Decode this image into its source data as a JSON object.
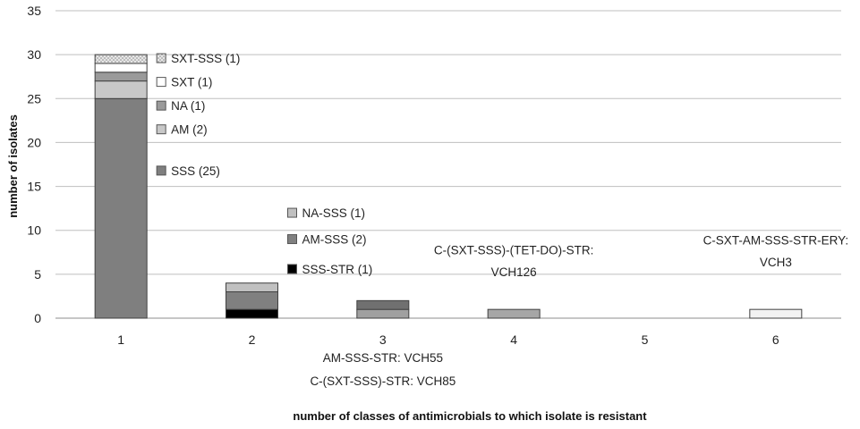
{
  "chart_data": {
    "type": "bar",
    "stacked": true,
    "title": "",
    "xlabel": "number of classes of antimicrobials  to which isolate is resistant",
    "ylabel": "number of isolates",
    "ylim": [
      0,
      35
    ],
    "ytick_step": 5,
    "grid": true,
    "categories": [
      "1",
      "2",
      "3",
      "4",
      "5",
      "6"
    ],
    "bars": [
      {
        "category": "1",
        "segments": [
          {
            "label": "SSS (25)",
            "value": 25,
            "fill": "#7f7f7f"
          },
          {
            "label": "AM (2)",
            "value": 2,
            "fill": "#c8c8c8"
          },
          {
            "label": "NA (1)",
            "value": 1,
            "fill": "#9a9a9a"
          },
          {
            "label": "SXT (1)",
            "value": 1,
            "fill": "#ffffff"
          },
          {
            "label": "SXT-SSS (1)",
            "value": 1,
            "fill": "#d9d9d9",
            "pattern": "dotted"
          }
        ]
      },
      {
        "category": "2",
        "segments": [
          {
            "label": "SSS-STR (1)",
            "value": 1,
            "fill": "#000000"
          },
          {
            "label": "AM-SSS (2)",
            "value": 2,
            "fill": "#808080"
          },
          {
            "label": "NA-SSS (1)",
            "value": 1,
            "fill": "#c0c0c0"
          }
        ]
      },
      {
        "category": "3",
        "segments": [
          {
            "label": "AM-SSS-STR:  VCH55",
            "value": 1,
            "fill": "#a0a0a0"
          },
          {
            "label": "C-(SXT-SSS)-STR:  VCH85",
            "value": 1,
            "fill": "#707070"
          }
        ]
      },
      {
        "category": "4",
        "segments": [
          {
            "label": "C-(SXT-SSS)-(TET-DO)-STR: VCH126",
            "value": 1,
            "fill": "#a6a6a6"
          }
        ]
      },
      {
        "category": "5",
        "segments": []
      },
      {
        "category": "6",
        "segments": [
          {
            "label": "C-SXT-AM-SSS-STR-ERY: VCH3",
            "value": 1,
            "fill": "#f2f2f2"
          }
        ]
      }
    ],
    "annotations": [
      {
        "text": "SXT-SSS (1)",
        "category": "1",
        "y": 29.6,
        "swatch": "#d9d9d9",
        "pattern": "dotted"
      },
      {
        "text": "SXT (1)",
        "category": "1",
        "y": 26.9,
        "swatch": "#ffffff"
      },
      {
        "text": "NA (1)",
        "category": "1",
        "y": 24.2,
        "swatch": "#9a9a9a"
      },
      {
        "text": "AM (2)",
        "category": "1",
        "y": 21.5,
        "swatch": "#c8c8c8"
      },
      {
        "text": "SSS (25)",
        "category": "1",
        "y": 16.8,
        "swatch": "#7f7f7f"
      },
      {
        "text": "NA-SSS (1)",
        "category": "2",
        "y": 12.0,
        "swatch": "#c0c0c0"
      },
      {
        "text": "AM-SSS (2)",
        "category": "2",
        "y": 9.0,
        "swatch": "#808080"
      },
      {
        "text": "SSS-STR (1)",
        "category": "2",
        "y": 5.6,
        "swatch": "#000000"
      },
      {
        "text": "C-(SXT-SSS)-(TET-DO)-STR:",
        "category": "4",
        "y": 7.8
      },
      {
        "text": "VCH126",
        "category": "4",
        "y": 5.3
      },
      {
        "text": "C-SXT-AM-SSS-STR-ERY:",
        "category": "6",
        "y": 8.9
      },
      {
        "text": "VCH3",
        "category": "6",
        "y": 6.4
      },
      {
        "text": "AM-SSS-STR:  VCH55",
        "category": "3",
        "y": -4.5
      },
      {
        "text": "C-(SXT-SSS)-STR:  VCH85",
        "category": "3",
        "y": -7.1
      }
    ]
  }
}
